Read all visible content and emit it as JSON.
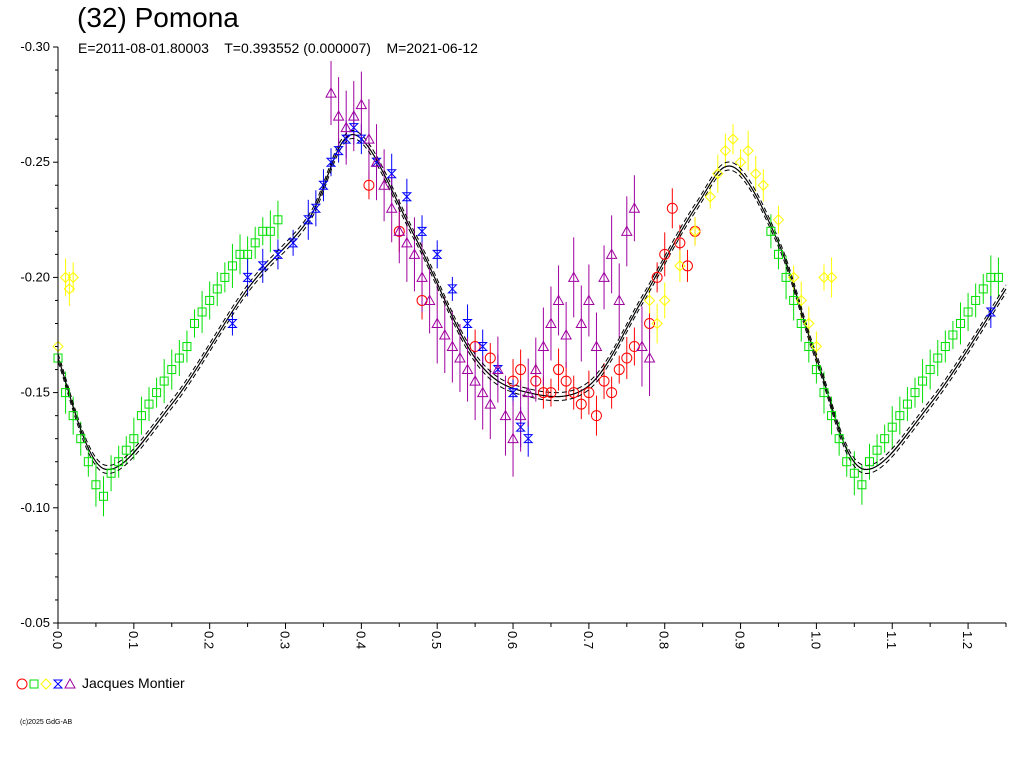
{
  "header": {
    "title": "(32) Pomona",
    "subtitle": "E=2011-08-01.80003    T=0.393552 (0.000007)    M=2021-06-12"
  },
  "legend": {
    "label": "Jacques Montier",
    "symbols": [
      "circle",
      "square",
      "diamond",
      "bowtie",
      "triangle"
    ]
  },
  "footer": {
    "copyright": "(c)2025 GdG-AB"
  },
  "chart_data": {
    "type": "scatter",
    "title": "(32) Pomona",
    "xlabel": "",
    "ylabel": "",
    "xlim": [
      0.0,
      1.25
    ],
    "ylim": [
      -0.3,
      -0.05
    ],
    "y_inverted": true,
    "y_ticks": [
      "-0.30",
      "-0.25",
      "-0.20",
      "-0.15",
      "-0.10",
      "-0.05"
    ],
    "y_tick_values": [
      -0.3,
      -0.25,
      -0.2,
      -0.15,
      -0.1,
      -0.05
    ],
    "x_ticks": [
      "0.0",
      "0.1",
      "0.2",
      "0.3",
      "0.4",
      "0.5",
      "0.6",
      "0.7",
      "0.8",
      "0.9",
      "1.0",
      "1.1",
      "1.2"
    ],
    "x_tick_values": [
      0.0,
      0.1,
      0.2,
      0.3,
      0.4,
      0.5,
      0.6,
      0.7,
      0.8,
      0.9,
      1.0,
      1.1,
      1.2
    ],
    "grid": false,
    "legend_position": "bottom-left",
    "fit_curve": {
      "phase": [
        0.0,
        0.06,
        0.15,
        0.25,
        0.33,
        0.39,
        0.47,
        0.55,
        0.62,
        0.7,
        0.77,
        0.84,
        0.89,
        0.95,
        1.0,
        1.06,
        1.15,
        1.25
      ],
      "magnitude": [
        -0.165,
        -0.117,
        -0.145,
        -0.195,
        -0.225,
        -0.262,
        -0.218,
        -0.165,
        -0.15,
        -0.153,
        -0.19,
        -0.23,
        -0.248,
        -0.215,
        -0.165,
        -0.117,
        -0.145,
        -0.195
      ]
    },
    "series": [
      {
        "color": "#ff0000",
        "marker": "circle",
        "x": [
          0.41,
          0.45,
          0.48,
          0.55,
          0.57,
          0.6,
          0.61,
          0.63,
          0.64,
          0.65,
          0.66,
          0.67,
          0.68,
          0.69,
          0.7,
          0.71,
          0.72,
          0.73,
          0.74,
          0.75,
          0.76,
          0.78,
          0.79,
          0.8,
          0.81,
          0.82,
          0.83,
          0.84
        ],
        "y": [
          -0.24,
          -0.22,
          -0.19,
          -0.17,
          -0.165,
          -0.155,
          -0.16,
          -0.155,
          -0.15,
          -0.15,
          -0.16,
          -0.155,
          -0.15,
          -0.145,
          -0.15,
          -0.14,
          -0.155,
          -0.15,
          -0.16,
          -0.165,
          -0.17,
          -0.18,
          -0.2,
          -0.21,
          -0.23,
          -0.215,
          -0.205,
          -0.22
        ]
      },
      {
        "color": "#00e000",
        "marker": "square",
        "x": [
          0.0,
          0.01,
          0.02,
          0.03,
          0.04,
          0.05,
          0.06,
          0.07,
          0.08,
          0.09,
          0.1,
          0.11,
          0.12,
          0.13,
          0.14,
          0.15,
          0.16,
          0.17,
          0.18,
          0.19,
          0.2,
          0.21,
          0.22,
          0.23,
          0.24,
          0.25,
          0.26,
          0.27,
          0.28,
          0.29,
          0.94,
          0.95,
          0.96,
          0.97,
          0.98,
          0.99,
          1.0,
          1.01,
          1.02,
          1.03,
          1.04,
          1.05,
          1.06,
          1.07,
          1.08,
          1.09,
          1.1,
          1.11,
          1.12,
          1.13,
          1.14,
          1.15,
          1.16,
          1.17,
          1.18,
          1.19,
          1.2,
          1.21,
          1.22,
          1.23,
          1.24
        ],
        "y": [
          -0.165,
          -0.15,
          -0.14,
          -0.13,
          -0.12,
          -0.11,
          -0.105,
          -0.115,
          -0.12,
          -0.125,
          -0.13,
          -0.14,
          -0.145,
          -0.15,
          -0.155,
          -0.16,
          -0.165,
          -0.17,
          -0.18,
          -0.185,
          -0.19,
          -0.195,
          -0.2,
          -0.205,
          -0.21,
          -0.21,
          -0.215,
          -0.22,
          -0.22,
          -0.225,
          -0.22,
          -0.21,
          -0.2,
          -0.19,
          -0.18,
          -0.17,
          -0.16,
          -0.15,
          -0.14,
          -0.13,
          -0.12,
          -0.115,
          -0.11,
          -0.12,
          -0.125,
          -0.13,
          -0.135,
          -0.14,
          -0.145,
          -0.15,
          -0.155,
          -0.16,
          -0.165,
          -0.17,
          -0.175,
          -0.18,
          -0.185,
          -0.19,
          -0.195,
          -0.2,
          -0.2
        ]
      },
      {
        "color": "#ffff00",
        "marker": "diamond",
        "x": [
          0.0,
          0.01,
          0.015,
          0.02,
          0.78,
          0.79,
          0.8,
          0.82,
          0.84,
          0.86,
          0.87,
          0.88,
          0.89,
          0.9,
          0.91,
          0.92,
          0.93,
          0.95,
          0.97,
          0.98,
          0.99,
          1.0,
          1.01,
          1.02
        ],
        "y": [
          -0.17,
          -0.2,
          -0.195,
          -0.2,
          -0.19,
          -0.18,
          -0.19,
          -0.205,
          -0.22,
          -0.235,
          -0.245,
          -0.255,
          -0.26,
          -0.25,
          -0.255,
          -0.245,
          -0.24,
          -0.225,
          -0.2,
          -0.19,
          -0.18,
          -0.17,
          -0.2,
          -0.2
        ]
      },
      {
        "color": "#0000ff",
        "marker": "bowtie",
        "x": [
          0.23,
          0.25,
          0.27,
          0.29,
          0.31,
          0.33,
          0.34,
          0.35,
          0.36,
          0.37,
          0.38,
          0.39,
          0.4,
          0.42,
          0.44,
          0.46,
          0.48,
          0.5,
          0.52,
          0.54,
          0.56,
          0.58,
          0.6,
          0.61,
          0.62,
          1.23
        ],
        "y": [
          -0.18,
          -0.2,
          -0.205,
          -0.21,
          -0.215,
          -0.225,
          -0.23,
          -0.24,
          -0.25,
          -0.255,
          -0.26,
          -0.265,
          -0.26,
          -0.25,
          -0.245,
          -0.235,
          -0.22,
          -0.21,
          -0.195,
          -0.18,
          -0.17,
          -0.16,
          -0.15,
          -0.135,
          -0.13,
          -0.185
        ]
      },
      {
        "color": "#a000a0",
        "marker": "triangle",
        "x": [
          0.36,
          0.37,
          0.38,
          0.39,
          0.4,
          0.41,
          0.42,
          0.43,
          0.44,
          0.45,
          0.46,
          0.47,
          0.48,
          0.49,
          0.5,
          0.51,
          0.52,
          0.53,
          0.54,
          0.55,
          0.56,
          0.57,
          0.58,
          0.59,
          0.6,
          0.61,
          0.62,
          0.63,
          0.64,
          0.65,
          0.66,
          0.67,
          0.68,
          0.69,
          0.7,
          0.71,
          0.72,
          0.73,
          0.74,
          0.75,
          0.76,
          0.77,
          0.78
        ],
        "y": [
          -0.28,
          -0.27,
          -0.265,
          -0.27,
          -0.275,
          -0.26,
          -0.25,
          -0.24,
          -0.23,
          -0.22,
          -0.215,
          -0.21,
          -0.2,
          -0.19,
          -0.18,
          -0.175,
          -0.17,
          -0.165,
          -0.16,
          -0.155,
          -0.15,
          -0.145,
          -0.16,
          -0.14,
          -0.13,
          -0.14,
          -0.15,
          -0.16,
          -0.17,
          -0.18,
          -0.19,
          -0.175,
          -0.2,
          -0.18,
          -0.19,
          -0.17,
          -0.2,
          -0.21,
          -0.19,
          -0.22,
          -0.23,
          -0.17,
          -0.165
        ]
      }
    ]
  }
}
